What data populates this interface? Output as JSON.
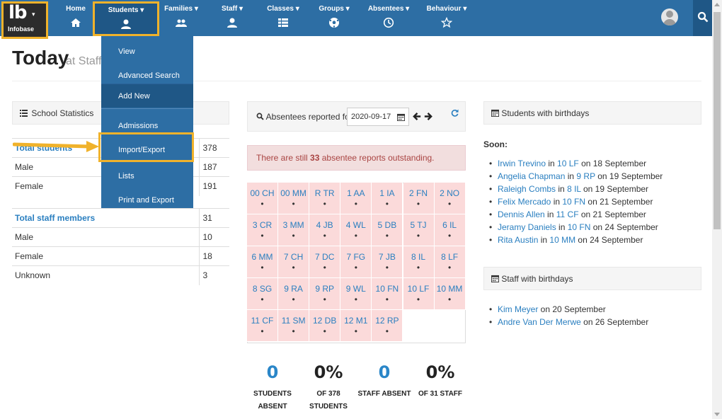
{
  "brand": {
    "logo_text": "lb",
    "caret": "▾",
    "name": "Infobase"
  },
  "nav": {
    "items": [
      {
        "label": "Home",
        "icon": "home-icon"
      },
      {
        "label": "Students ▾",
        "icon": "user-icon"
      },
      {
        "label": "Families ▾",
        "icon": "users-icon"
      },
      {
        "label": "Staff ▾",
        "icon": "user-icon"
      },
      {
        "label": "Classes ▾",
        "icon": "list-icon"
      },
      {
        "label": "Groups ▾",
        "icon": "soccer-ball-icon"
      },
      {
        "label": "Absentees ▾",
        "icon": "clock-icon"
      },
      {
        "label": "Behaviour ▾",
        "icon": "star-icon"
      }
    ]
  },
  "students_menu": {
    "items": [
      "View",
      "Advanced Search",
      "Add New",
      "Admissions",
      "Import/Export",
      "Lists",
      "Print and Export"
    ]
  },
  "page": {
    "title": "Today",
    "subtitle": "at Staff        hool"
  },
  "school_stats": {
    "heading": "School Statistics",
    "students": [
      {
        "label": "Total students",
        "value": "378"
      },
      {
        "label": "Male",
        "value": "187"
      },
      {
        "label": "Female",
        "value": "191"
      }
    ],
    "staff": [
      {
        "label": "Total staff members",
        "value": "31"
      },
      {
        "label": "Male",
        "value": "10"
      },
      {
        "label": "Female",
        "value": "18"
      },
      {
        "label": "Unknown",
        "value": "3"
      }
    ]
  },
  "absentees": {
    "heading": "Absentees reported for",
    "date": "2020-09-17",
    "alert_prefix": "There are still ",
    "alert_count": "33",
    "alert_suffix": " absentee reports outstanding.",
    "classes": [
      "00 CH",
      "00 MM",
      "R TR",
      "1 AA",
      "1 IA",
      "2 FN",
      "2 NO",
      "3 CR",
      "3 MM",
      "4 JB",
      "4 WL",
      "5 DB",
      "5 TJ",
      "6 IL",
      "6 MM",
      "7 CH",
      "7 DC",
      "7 FG",
      "7 JB",
      "8 IL",
      "8 LF",
      "8 SG",
      "9 RA",
      "9 RP",
      "9 WL",
      "10 FN",
      "10 LF",
      "10 MM",
      "11 CF",
      "11 SM",
      "12 DB",
      "12 M1",
      "12 RP"
    ],
    "dot": "•"
  },
  "summary": [
    {
      "value": "0",
      "caption1": "STUDENTS",
      "caption2": "ABSENT"
    },
    {
      "value": "0%",
      "caption1": "OF 378",
      "caption2": "STUDENTS"
    },
    {
      "value": "0",
      "caption1": "STAFF ABSENT",
      "caption2": ""
    },
    {
      "value": "0%",
      "caption1": "OF 31 STAFF",
      "caption2": ""
    }
  ],
  "student_birthdays": {
    "heading": "Students with birthdays",
    "soon_label": "Soon:",
    "items": [
      {
        "name": "Irwin Trevino",
        "class": "10 LF",
        "date": "18 September"
      },
      {
        "name": "Angelia Chapman",
        "class": "9 RP",
        "date": "19 September"
      },
      {
        "name": "Raleigh Combs",
        "class": "8 IL",
        "date": "19 September"
      },
      {
        "name": "Felix Mercado",
        "class": "10 FN",
        "date": "21 September"
      },
      {
        "name": "Dennis Allen",
        "class": "11 CF",
        "date": "21 September"
      },
      {
        "name": "Jeramy Daniels",
        "class": "10 FN",
        "date": "24 September"
      },
      {
        "name": "Rita Austin",
        "class": "10 MM",
        "date": "24 September"
      }
    ],
    "in_word": " in ",
    "on_word": " on "
  },
  "staff_birthdays": {
    "heading": "Staff with birthdays",
    "items": [
      {
        "name": "Kim Meyer",
        "date": "20 September"
      },
      {
        "name": "Andre Van Der Merwe",
        "date": "26 September"
      }
    ],
    "on_word": " on "
  }
}
